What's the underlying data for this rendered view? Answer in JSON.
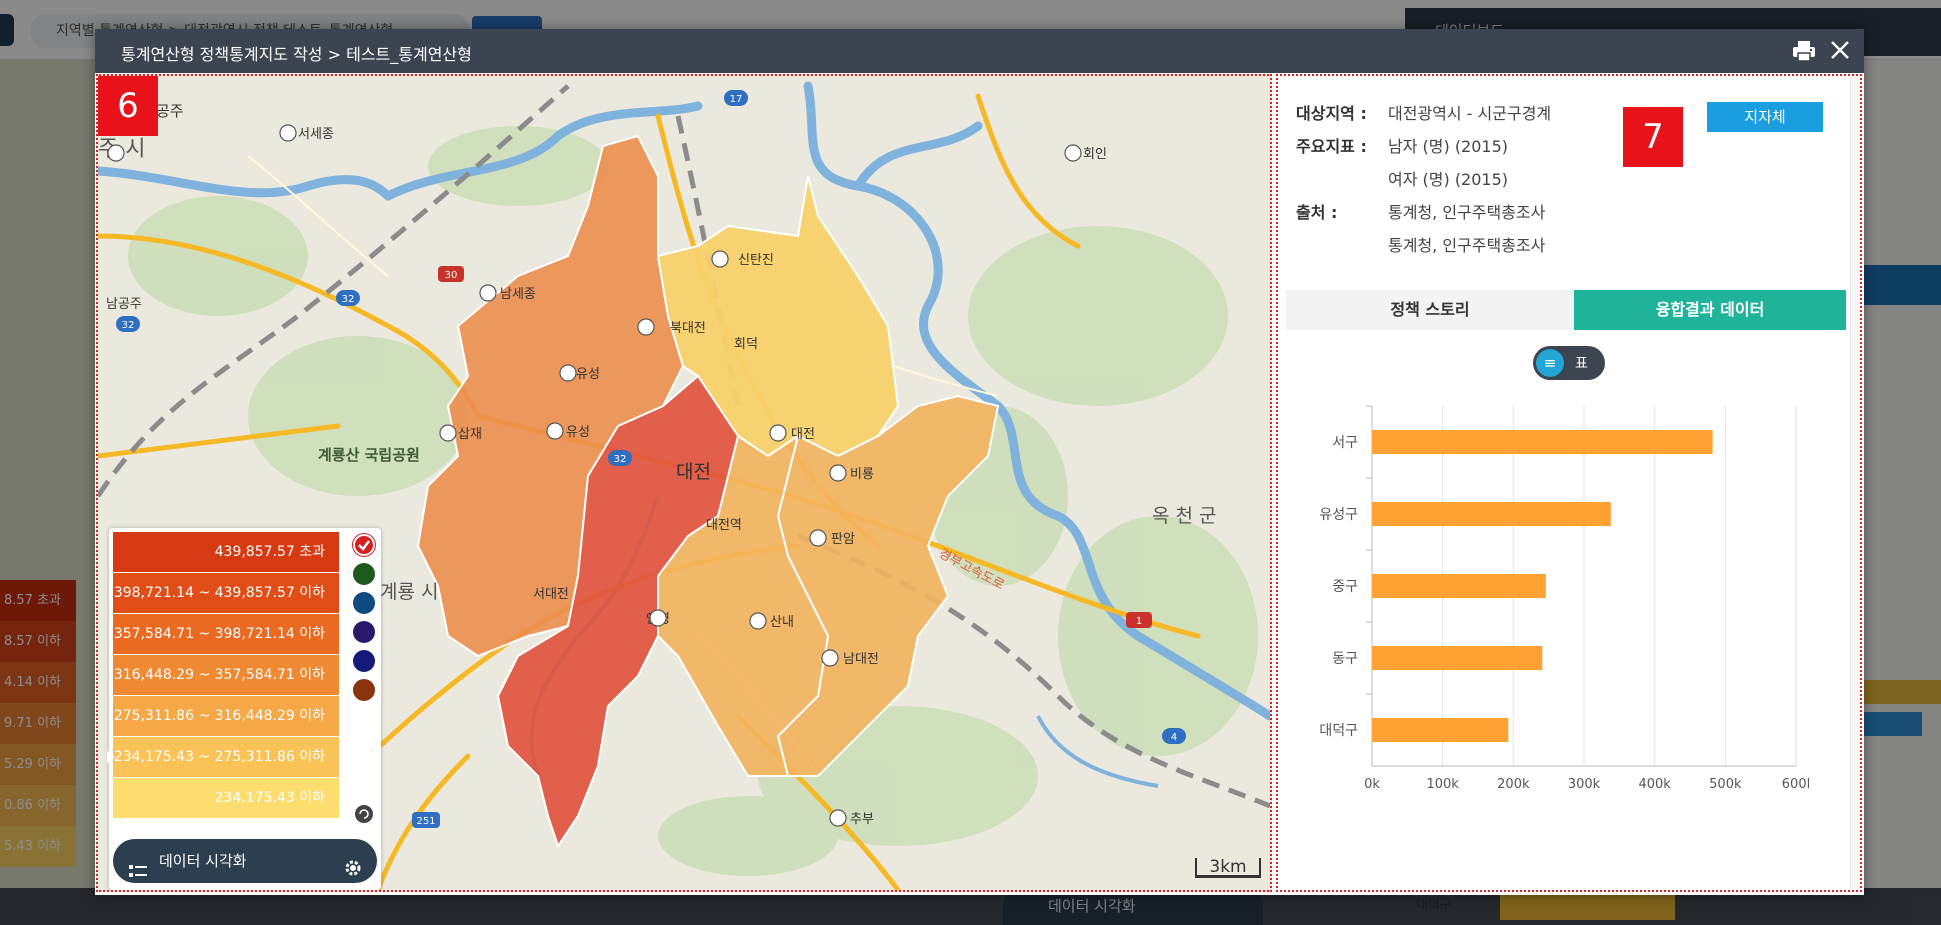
{
  "background": {
    "breadcrumb": "지역별 통계연산형 > 대전광역시 정책 테스트_통계연산형",
    "dashboard_label": "데이터보드",
    "legend_labels": [
      "8.57 초과",
      "8.57 이하",
      "4.14 이하",
      "9.71 이하",
      "5.29 이하",
      "0.86 이하",
      "5.43 이하"
    ],
    "viz_label": "데이터 시각화",
    "bottom_label": "대덕구"
  },
  "modal": {
    "title": "통계연산형 정책통계지도 작성 > 테스트_통계연산형"
  },
  "map": {
    "badge": "6",
    "scale": "3km",
    "place_labels": {
      "gongju": "공주",
      "si": "주 시",
      "seosejong_ic": "서세종",
      "seosejong_left": "서세종",
      "namgongju": "남공주",
      "namsejong": "남세종",
      "sintanjin": "신탄진",
      "hoein": "회인",
      "bukdaejeon": "북대전",
      "hoedeok": "회덕",
      "yuseong_ic": "유성",
      "yuseong2": "유성",
      "daejeon_ic": "대전",
      "biryong": "비룡",
      "daejeon_center": "대전",
      "daejeon_station": "대전역",
      "panam": "판암",
      "sapjae": "삽재",
      "gyeryong_park": "계룡산 국립공원",
      "gyeryong_park_left": "계룡산 국립공원",
      "gyeryong_si": "계룡 시",
      "okcheon": "옥 천 군",
      "seodaejeon": "서대전",
      "anyeong": "안영",
      "sannae": "산내",
      "namdaejeon": "남대전",
      "chubu": "추부",
      "highway": "경부고속도로",
      "r17": "17",
      "r30": "30",
      "r32a": "32",
      "r32b": "32",
      "r32c": "32",
      "r1": "1",
      "r4": "4",
      "r251": "251"
    },
    "legend": {
      "rows": [
        {
          "label": "439,857.57 초과",
          "color": "#d63a12"
        },
        {
          "label": "398,721.14 ~ 439,857.57 이하",
          "color": "#e14d17"
        },
        {
          "label": "357,584.71 ~ 398,721.14 이하",
          "color": "#ea6a22"
        },
        {
          "label": "316,448.29 ~ 357,584.71 이하",
          "color": "#f08a32"
        },
        {
          "label": "275,311.86 ~ 316,448.29 이하",
          "color": "#f5a845"
        },
        {
          "label": "234,175.43 ~ 275,311.86 이하",
          "color": "#f9c358"
        },
        {
          "label": "234,175.43 이하",
          "color": "#fddd6e"
        }
      ],
      "palette": [
        "#d42020",
        "#1e5a1e",
        "#0c4a80",
        "#2a186e",
        "#141a78",
        "#8a3410"
      ],
      "viz_label": "데이터 시각화"
    }
  },
  "info": {
    "badge": "7",
    "region_button": "지자체",
    "target_region_key": "대상지역 :",
    "target_region": "대전광역시 - 시군구경계",
    "indicators_key": "주요지표 :",
    "indicator_1": "남자 (명) (2015)",
    "indicator_2": "여자 (명) (2015)",
    "source_key": "출처 :",
    "source_1": "통계청, 인구주택총조사",
    "source_2": "통계청, 인구주택총조사",
    "tab_story": "정책 스토리",
    "tab_data": "융합결과 데이터",
    "toggle_label": "표"
  },
  "chart_data": {
    "type": "bar",
    "orientation": "horizontal",
    "categories": [
      "서구",
      "유성구",
      "중구",
      "동구",
      "대덕구"
    ],
    "values": [
      482000,
      338000,
      246000,
      241000,
      193000
    ],
    "xlim": [
      0,
      600000
    ],
    "xticks": [
      "0k",
      "100k",
      "200k",
      "300k",
      "400k",
      "500k",
      "600l"
    ],
    "bar_color": "#ffa233",
    "grid": true
  }
}
